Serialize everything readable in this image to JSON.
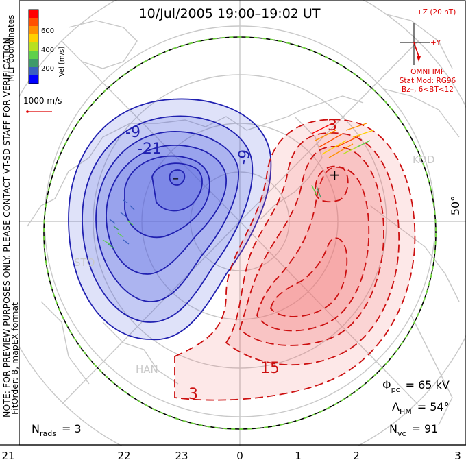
{
  "title": "10/Jul/2005 19:00–19:02 UT",
  "colorbar": {
    "label": "Vel [m/s]",
    "ticks": [
      "600",
      "400",
      "200"
    ],
    "colors": [
      "#0000ff",
      "#3a5fc0",
      "#3f9a6a",
      "#5fd04a",
      "#b8e020",
      "#ffd000",
      "#ff9000",
      "#ff5000",
      "#ff0000"
    ]
  },
  "side_labels": {
    "coords": "MLT coordinates",
    "note1": "NOTE: FOR PREVIEW PURPOSES ONLY. PLEASE CONTACT VT-SD STAFF FOR VERIFICATION.",
    "note2": "FitOrder: 8, mapEX format"
  },
  "vector_scale": "1000 m/s",
  "imf": {
    "z_label": "+Z (20 nT)",
    "y_label": "+Y",
    "source": "OMNI IMF",
    "model": "Stat Mod: RG96",
    "condition": "Bz–, 6<BT<12"
  },
  "latitude_label": "50°",
  "stations": [
    "KOD",
    "STO",
    "HAN"
  ],
  "contour_labels": [
    "-9",
    "-21",
    "-9",
    "3",
    "15",
    "3"
  ],
  "potential_min_mark": "–",
  "potential_max_mark": "+",
  "stats": {
    "phi_pc": {
      "symbol": "Φ",
      "sub": "pc",
      "value": "= 65 kV"
    },
    "lambda_hm": {
      "symbol": "Λ",
      "sub": "HM",
      "value": "= 54°"
    },
    "n_vc": {
      "symbol": "N",
      "sub": "vc",
      "value": "= 91"
    },
    "n_rads": {
      "symbol": "N",
      "sub": "rads",
      "value": "= 3"
    }
  },
  "x_axis_ticks": [
    "21",
    "22",
    "23",
    "0",
    "1",
    "2",
    "3"
  ],
  "colors": {
    "negative_line": "#2020b0",
    "positive_line": "#cc1010",
    "negative_fill": "#5060e0",
    "positive_fill": "#f07070",
    "boundary_green": "#70d040",
    "map": "#c8c8c8",
    "imf_red": "#dd0000"
  }
}
